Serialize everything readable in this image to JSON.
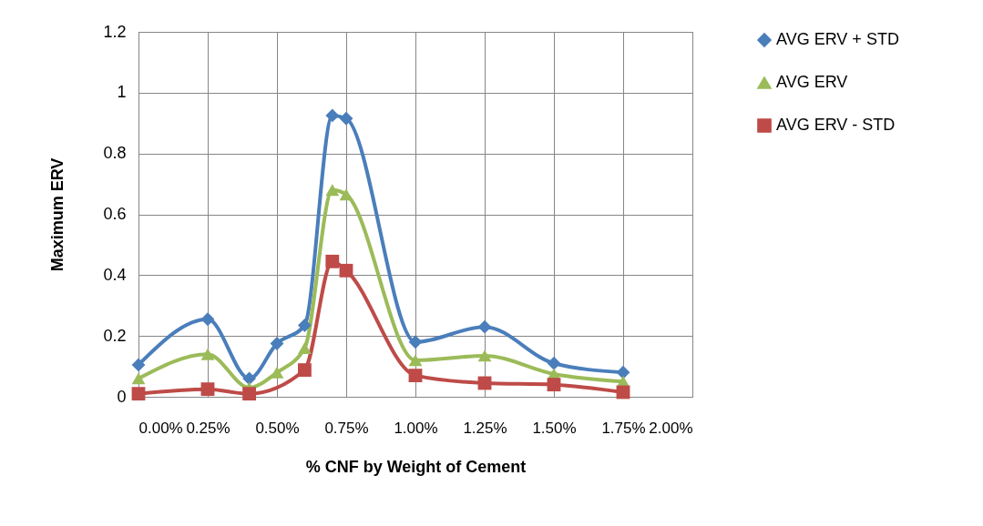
{
  "chart_data": {
    "type": "line",
    "xlabel": "% CNF by Weight of Cement",
    "ylabel": "Maximum ERV",
    "x": [
      0,
      0.25,
      0.4,
      0.5,
      0.6,
      0.7,
      0.75,
      1.0,
      1.25,
      1.5,
      1.75
    ],
    "series": [
      {
        "name": "AVG ERV + STD",
        "color": "#4a7ebb",
        "marker": "diamond",
        "values": [
          0.105,
          0.255,
          0.06,
          0.175,
          0.235,
          0.925,
          0.915,
          0.18,
          0.23,
          0.11,
          0.08
        ]
      },
      {
        "name": "AVG ERV",
        "color": "#9bbb59",
        "marker": "triangle",
        "values": [
          0.06,
          0.14,
          0.03,
          0.08,
          0.16,
          0.68,
          0.665,
          0.12,
          0.135,
          0.075,
          0.05
        ]
      },
      {
        "name": "AVG ERV - STD",
        "color": "#be4b48",
        "marker": "square",
        "x": [
          0,
          0.25,
          0.4,
          0.6,
          0.7,
          0.75,
          1.0,
          1.25,
          1.5,
          1.75
        ],
        "values": [
          0.01,
          0.025,
          0.01,
          0.088,
          0.445,
          0.415,
          0.07,
          0.045,
          0.04,
          0.015
        ]
      }
    ],
    "xlim": [
      0,
      2
    ],
    "xticks": [
      {
        "value": 0,
        "label": "0.00%"
      },
      {
        "value": 0.25,
        "label": "0.25%"
      },
      {
        "value": 0.5,
        "label": "0.50%"
      },
      {
        "value": 0.75,
        "label": "0.75%"
      },
      {
        "value": 1,
        "label": "1.00%"
      },
      {
        "value": 1.25,
        "label": "1.25%"
      },
      {
        "value": 1.5,
        "label": "1.50%"
      },
      {
        "value": 1.75,
        "label": "1.75%"
      },
      {
        "value": 2,
        "label": "2.00%"
      }
    ],
    "ylim": [
      0,
      1.2
    ],
    "yticks": [
      0,
      0.2,
      0.4,
      0.6,
      0.8,
      1,
      1.2
    ],
    "grid": true,
    "legend": "right",
    "line_style": "solid"
  }
}
